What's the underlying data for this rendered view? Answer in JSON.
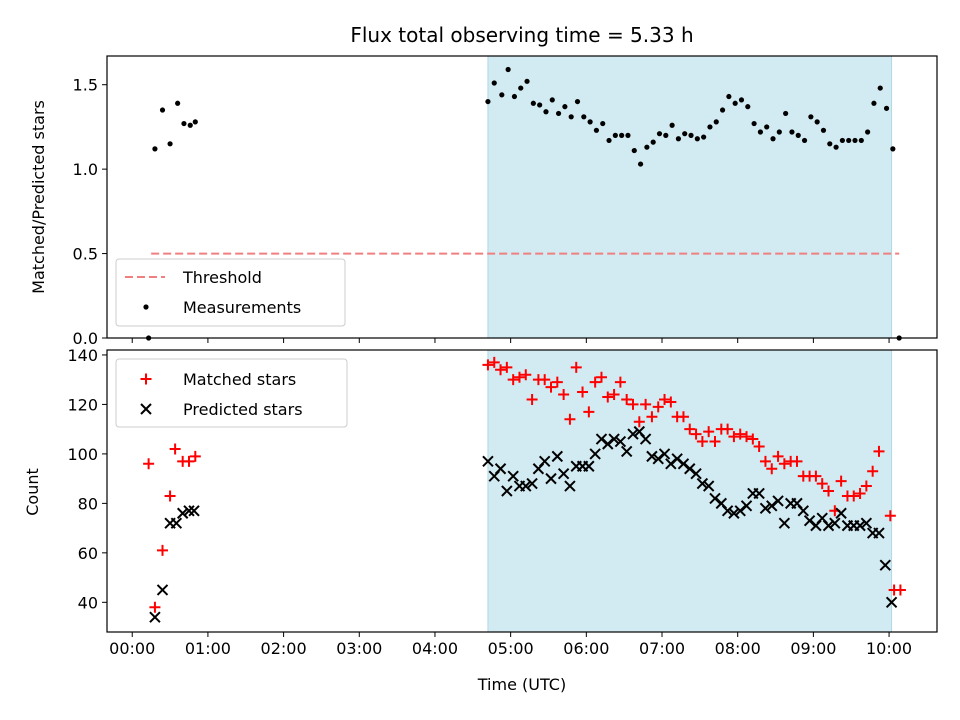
{
  "chart_data": [
    {
      "type": "scatter",
      "title": "Flux total observing time = 5.33 h",
      "xlabel": "",
      "ylabel": "Matched/Predicted stars",
      "ylim": [
        0,
        1.67
      ],
      "yticks": [
        "0.0",
        "0.5",
        "1.0",
        "1.5"
      ],
      "shaded_region": {
        "x_start": "04:42",
        "x_end": "10:02",
        "color": "#add8e6"
      },
      "legend": {
        "placement": "lower-left",
        "entries": [
          "Threshold",
          "Measurements"
        ]
      },
      "threshold": {
        "name": "Threshold",
        "y": 0.5,
        "x_start": "00:15",
        "x_end": "10:08",
        "color": "#f08080",
        "style": "dashed"
      },
      "series": [
        {
          "name": "Measurements",
          "marker": "dot",
          "color": "#000000",
          "points": [
            [
              "00:13",
              0.0
            ],
            [
              "00:18",
              1.12
            ],
            [
              "00:24",
              1.35
            ],
            [
              "00:30",
              1.15
            ],
            [
              "00:36",
              1.39
            ],
            [
              "00:41",
              1.27
            ],
            [
              "00:46",
              1.26
            ],
            [
              "00:50",
              1.28
            ],
            [
              "04:42",
              1.4
            ],
            [
              "04:47",
              1.51
            ],
            [
              "04:53",
              1.44
            ],
            [
              "04:58",
              1.59
            ],
            [
              "05:03",
              1.43
            ],
            [
              "05:08",
              1.48
            ],
            [
              "05:13",
              1.52
            ],
            [
              "05:18",
              1.39
            ],
            [
              "05:23",
              1.38
            ],
            [
              "05:28",
              1.34
            ],
            [
              "05:33",
              1.41
            ],
            [
              "05:38",
              1.33
            ],
            [
              "05:43",
              1.37
            ],
            [
              "05:48",
              1.31
            ],
            [
              "05:53",
              1.4
            ],
            [
              "05:58",
              1.31
            ],
            [
              "06:03",
              1.28
            ],
            [
              "06:08",
              1.23
            ],
            [
              "06:13",
              1.27
            ],
            [
              "06:18",
              1.17
            ],
            [
              "06:23",
              1.2
            ],
            [
              "06:28",
              1.2
            ],
            [
              "06:33",
              1.2
            ],
            [
              "06:38",
              1.11
            ],
            [
              "06:43",
              1.03
            ],
            [
              "06:48",
              1.13
            ],
            [
              "06:53",
              1.16
            ],
            [
              "06:58",
              1.21
            ],
            [
              "07:03",
              1.2
            ],
            [
              "07:08",
              1.26
            ],
            [
              "07:13",
              1.18
            ],
            [
              "07:18",
              1.21
            ],
            [
              "07:23",
              1.2
            ],
            [
              "07:28",
              1.18
            ],
            [
              "07:33",
              1.19
            ],
            [
              "07:38",
              1.25
            ],
            [
              "07:43",
              1.28
            ],
            [
              "07:48",
              1.35
            ],
            [
              "07:53",
              1.43
            ],
            [
              "07:58",
              1.39
            ],
            [
              "08:03",
              1.41
            ],
            [
              "08:08",
              1.37
            ],
            [
              "08:13",
              1.27
            ],
            [
              "08:18",
              1.22
            ],
            [
              "08:23",
              1.25
            ],
            [
              "08:28",
              1.18
            ],
            [
              "08:33",
              1.22
            ],
            [
              "08:38",
              1.33
            ],
            [
              "08:43",
              1.22
            ],
            [
              "08:48",
              1.2
            ],
            [
              "08:53",
              1.17
            ],
            [
              "08:58",
              1.31
            ],
            [
              "09:03",
              1.28
            ],
            [
              "09:08",
              1.23
            ],
            [
              "09:13",
              1.15
            ],
            [
              "09:18",
              1.13
            ],
            [
              "09:23",
              1.17
            ],
            [
              "09:28",
              1.17
            ],
            [
              "09:33",
              1.17
            ],
            [
              "09:38",
              1.17
            ],
            [
              "09:43",
              1.22
            ],
            [
              "09:48",
              1.39
            ],
            [
              "09:53",
              1.48
            ],
            [
              "09:58",
              1.36
            ],
            [
              "10:03",
              1.12
            ],
            [
              "10:08",
              0.0
            ]
          ]
        }
      ]
    },
    {
      "type": "scatter",
      "title": "",
      "xlabel": "Time (UTC)",
      "ylabel": "Count",
      "ylim": [
        28,
        142
      ],
      "yticks": [
        "40",
        "60",
        "80",
        "100",
        "120",
        "140"
      ],
      "xticks": [
        "00:00",
        "01:00",
        "02:00",
        "03:00",
        "04:00",
        "05:00",
        "06:00",
        "07:00",
        "08:00",
        "09:00",
        "10:00"
      ],
      "xlim": [
        "-00:20",
        "10:38"
      ],
      "shaded_region": {
        "x_start": "04:42",
        "x_end": "10:02",
        "color": "#add8e6"
      },
      "legend": {
        "placement": "upper-left",
        "entries": [
          "Matched stars",
          "Predicted stars"
        ]
      },
      "series": [
        {
          "name": "Matched stars",
          "marker": "plus",
          "color": "#ff0000",
          "points": [
            [
              "00:13",
              96
            ],
            [
              "00:18",
              38
            ],
            [
              "00:24",
              61
            ],
            [
              "00:30",
              83
            ],
            [
              "00:34",
              102
            ],
            [
              "00:40",
              97
            ],
            [
              "00:45",
              97
            ],
            [
              "00:50",
              99
            ],
            [
              "04:42",
              136
            ],
            [
              "04:47",
              137
            ],
            [
              "04:52",
              134
            ],
            [
              "04:57",
              135
            ],
            [
              "05:02",
              130
            ],
            [
              "05:07",
              131
            ],
            [
              "05:12",
              132
            ],
            [
              "05:17",
              122
            ],
            [
              "05:22",
              130
            ],
            [
              "05:27",
              130
            ],
            [
              "05:32",
              127
            ],
            [
              "05:37",
              129
            ],
            [
              "05:42",
              124
            ],
            [
              "05:47",
              114
            ],
            [
              "05:52",
              135
            ],
            [
              "05:57",
              125
            ],
            [
              "06:02",
              117
            ],
            [
              "06:07",
              129
            ],
            [
              "06:12",
              131
            ],
            [
              "06:17",
              123
            ],
            [
              "06:22",
              124
            ],
            [
              "06:27",
              129
            ],
            [
              "06:32",
              122
            ],
            [
              "06:37",
              120
            ],
            [
              "06:42",
              113
            ],
            [
              "06:47",
              120
            ],
            [
              "06:52",
              115
            ],
            [
              "06:57",
              119
            ],
            [
              "07:02",
              122
            ],
            [
              "07:07",
              121
            ],
            [
              "07:12",
              115
            ],
            [
              "07:17",
              115
            ],
            [
              "07:22",
              110
            ],
            [
              "07:27",
              108
            ],
            [
              "07:32",
              105
            ],
            [
              "07:37",
              109
            ],
            [
              "07:42",
              105
            ],
            [
              "07:47",
              110
            ],
            [
              "07:52",
              110
            ],
            [
              "07:57",
              107
            ],
            [
              "08:02",
              108
            ],
            [
              "08:07",
              107
            ],
            [
              "08:12",
              106
            ],
            [
              "08:17",
              103
            ],
            [
              "08:22",
              97
            ],
            [
              "08:27",
              94
            ],
            [
              "08:32",
              99
            ],
            [
              "08:37",
              96
            ],
            [
              "08:42",
              97
            ],
            [
              "08:47",
              97
            ],
            [
              "08:52",
              91
            ],
            [
              "08:57",
              91
            ],
            [
              "09:02",
              91
            ],
            [
              "09:07",
              88
            ],
            [
              "09:12",
              85
            ],
            [
              "09:17",
              77
            ],
            [
              "09:22",
              89
            ],
            [
              "09:27",
              83
            ],
            [
              "09:32",
              83
            ],
            [
              "09:37",
              84
            ],
            [
              "09:42",
              87
            ],
            [
              "09:47",
              93
            ],
            [
              "09:52",
              101
            ],
            [
              "10:01",
              75
            ],
            [
              "10:04",
              45
            ],
            [
              "10:09",
              45
            ]
          ]
        },
        {
          "name": "Predicted stars",
          "marker": "x",
          "color": "#000000",
          "points": [
            [
              "00:18",
              34
            ],
            [
              "00:24",
              45
            ],
            [
              "00:30",
              72
            ],
            [
              "00:35",
              72
            ],
            [
              "00:40",
              76
            ],
            [
              "00:45",
              77
            ],
            [
              "00:49",
              77
            ],
            [
              "04:42",
              97
            ],
            [
              "04:47",
              91
            ],
            [
              "04:52",
              94
            ],
            [
              "04:57",
              85
            ],
            [
              "05:02",
              91
            ],
            [
              "05:07",
              87
            ],
            [
              "05:12",
              87
            ],
            [
              "05:17",
              88
            ],
            [
              "05:22",
              94
            ],
            [
              "05:27",
              97
            ],
            [
              "05:32",
              90
            ],
            [
              "05:37",
              99
            ],
            [
              "05:42",
              92
            ],
            [
              "05:47",
              87
            ],
            [
              "05:52",
              95
            ],
            [
              "05:57",
              95
            ],
            [
              "06:02",
              95
            ],
            [
              "06:07",
              100
            ],
            [
              "06:12",
              106
            ],
            [
              "06:17",
              104
            ],
            [
              "06:22",
              106
            ],
            [
              "06:27",
              105
            ],
            [
              "06:32",
              101
            ],
            [
              "06:37",
              108
            ],
            [
              "06:42",
              109
            ],
            [
              "06:47",
              106
            ],
            [
              "06:52",
              99
            ],
            [
              "06:57",
              98
            ],
            [
              "07:02",
              100
            ],
            [
              "07:07",
              96
            ],
            [
              "07:12",
              98
            ],
            [
              "07:17",
              96
            ],
            [
              "07:22",
              94
            ],
            [
              "07:27",
              92
            ],
            [
              "07:32",
              88
            ],
            [
              "07:37",
              87
            ],
            [
              "07:42",
              82
            ],
            [
              "07:47",
              80
            ],
            [
              "07:52",
              77
            ],
            [
              "07:57",
              76
            ],
            [
              "08:02",
              77
            ],
            [
              "08:07",
              79
            ],
            [
              "08:12",
              84
            ],
            [
              "08:17",
              84
            ],
            [
              "08:22",
              78
            ],
            [
              "08:27",
              79
            ],
            [
              "08:32",
              81
            ],
            [
              "08:37",
              72
            ],
            [
              "08:42",
              80
            ],
            [
              "08:47",
              80
            ],
            [
              "08:52",
              77
            ],
            [
              "08:57",
              73
            ],
            [
              "09:02",
              71
            ],
            [
              "09:07",
              74
            ],
            [
              "09:12",
              71
            ],
            [
              "09:17",
              72
            ],
            [
              "09:22",
              76
            ],
            [
              "09:27",
              71
            ],
            [
              "09:32",
              71
            ],
            [
              "09:37",
              71
            ],
            [
              "09:42",
              72
            ],
            [
              "09:47",
              68
            ],
            [
              "09:52",
              68
            ],
            [
              "09:57",
              55
            ],
            [
              "10:02",
              40
            ]
          ]
        }
      ]
    }
  ]
}
